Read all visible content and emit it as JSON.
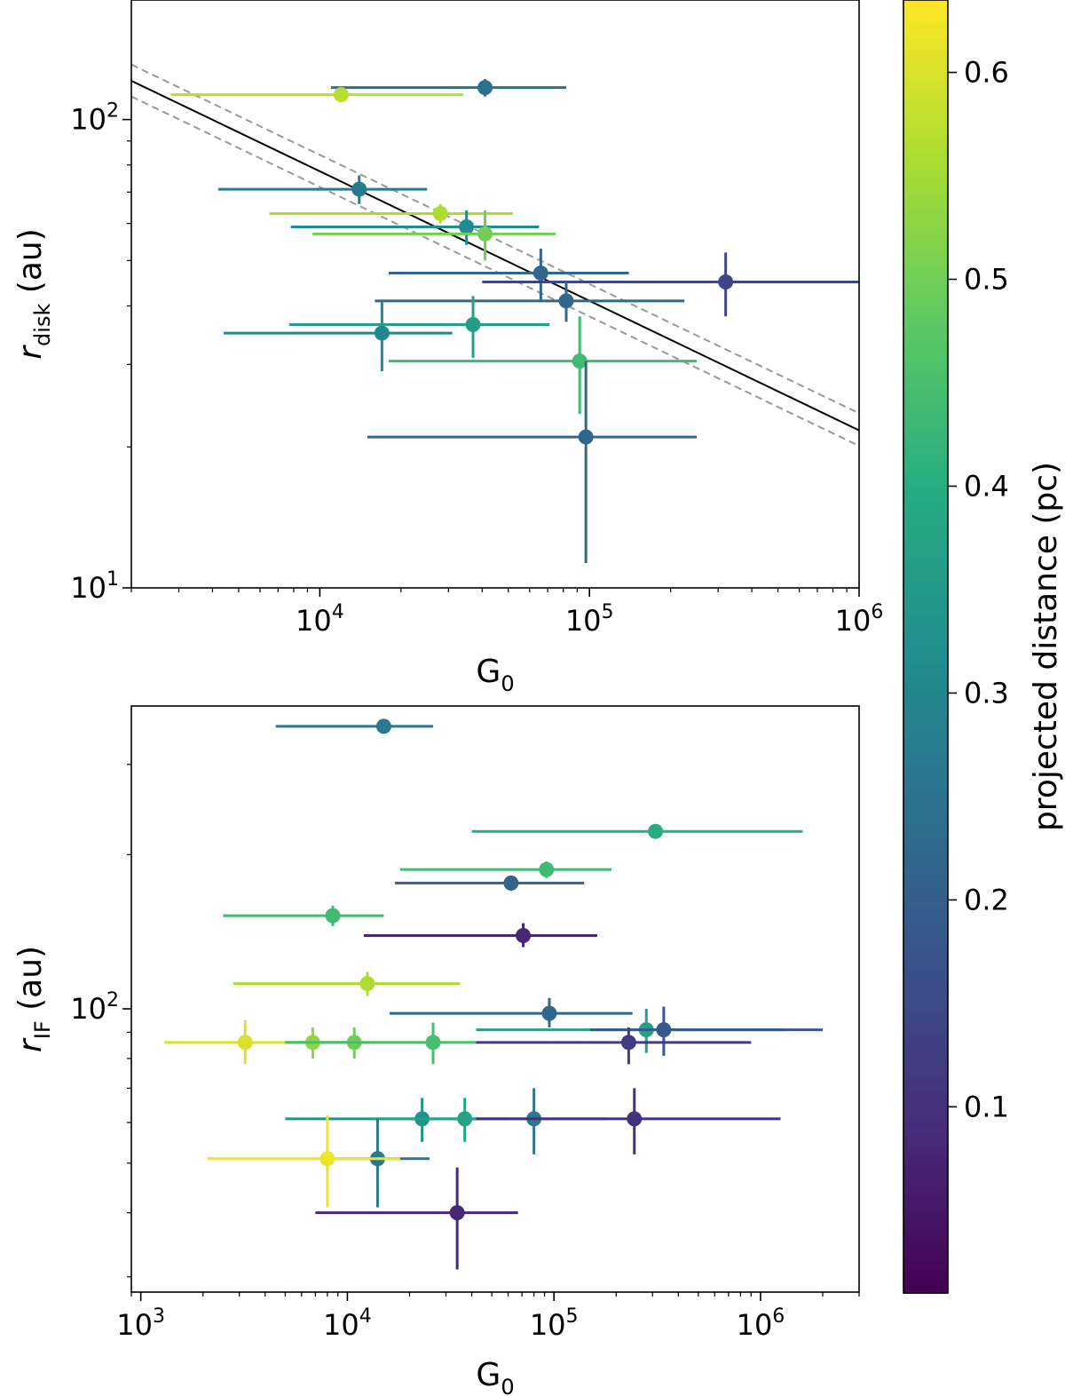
{
  "chart_data": [
    {
      "type": "scatter",
      "panel": "top",
      "title": "",
      "xlabel": "G",
      "xlabel_sub": "0",
      "ylabel": "r",
      "ylabel_sub": "disk",
      "ylabel_unit": "(au)",
      "xscale": "log",
      "yscale": "log",
      "xlim": [
        2000,
        1000000
      ],
      "ylim": [
        10,
        180
      ],
      "x_ticks": [
        {
          "base": "10",
          "exp": "4",
          "value": 10000
        },
        {
          "base": "10",
          "exp": "5",
          "value": 100000
        },
        {
          "base": "10",
          "exp": "6",
          "value": 1000000
        }
      ],
      "y_ticks": [
        {
          "base": "10",
          "exp": "1",
          "value": 10
        },
        {
          "base": "10",
          "exp": "2",
          "value": 100
        }
      ],
      "fit_line": {
        "style": "solid black",
        "x": [
          2000,
          1000000
        ],
        "y": [
          121,
          21.7
        ]
      },
      "fit_band": [
        {
          "style": "dashed gray",
          "x": [
            2000,
            1000000
          ],
          "y": [
            131,
            23.6
          ]
        },
        {
          "style": "dashed gray",
          "x": [
            2000,
            1000000
          ],
          "y": [
            112,
            20.1
          ]
        }
      ],
      "points": [
        {
          "x": 41000,
          "y": 117,
          "xlo": 11000,
          "xhi": 82000,
          "ylo": 112,
          "yhi": 122,
          "dist": 0.24
        },
        {
          "x": 12000,
          "y": 113,
          "xlo": 2800,
          "xhi": 34000,
          "ylo": 113,
          "yhi": 113,
          "dist": 0.57
        },
        {
          "x": 14000,
          "y": 71,
          "xlo": 4200,
          "xhi": 25000,
          "ylo": 66,
          "yhi": 76,
          "dist": 0.27
        },
        {
          "x": 28000,
          "y": 63,
          "xlo": 6500,
          "xhi": 52000,
          "ylo": 60,
          "yhi": 66,
          "dist": 0.56
        },
        {
          "x": 35000,
          "y": 59,
          "xlo": 7800,
          "xhi": 65000,
          "ylo": 54,
          "yhi": 64,
          "dist": 0.31
        },
        {
          "x": 41000,
          "y": 57,
          "xlo": 9400,
          "xhi": 75000,
          "ylo": 50,
          "yhi": 64,
          "dist": 0.5
        },
        {
          "x": 66000,
          "y": 47,
          "xlo": 18000,
          "xhi": 140000,
          "ylo": 41,
          "yhi": 53,
          "dist": 0.22
        },
        {
          "x": 320000,
          "y": 45,
          "xlo": 40000,
          "xhi": 1000000,
          "ylo": 38,
          "yhi": 52,
          "dist": 0.14
        },
        {
          "x": 82000,
          "y": 41,
          "xlo": 16000,
          "xhi": 225000,
          "ylo": 37,
          "yhi": 45,
          "dist": 0.22
        },
        {
          "x": 17000,
          "y": 35,
          "xlo": 4400,
          "xhi": 31000,
          "ylo": 29,
          "yhi": 41,
          "dist": 0.3
        },
        {
          "x": 37000,
          "y": 36.5,
          "xlo": 7700,
          "xhi": 71000,
          "ylo": 31,
          "yhi": 42,
          "dist": 0.36
        },
        {
          "x": 92000,
          "y": 30.5,
          "xlo": 18000,
          "xhi": 250000,
          "ylo": 23.5,
          "yhi": 38,
          "dist": 0.44
        },
        {
          "x": 97000,
          "y": 21,
          "xlo": 15000,
          "xhi": 250000,
          "ylo": 11.3,
          "yhi": 30.5,
          "dist": 0.22
        }
      ]
    },
    {
      "type": "scatter",
      "panel": "bottom",
      "title": "",
      "xlabel": "G",
      "xlabel_sub": "0",
      "ylabel": "r",
      "ylabel_sub": "IF",
      "ylabel_unit": "(au)",
      "xscale": "log",
      "yscale": "log",
      "xlim": [
        900,
        3000000
      ],
      "ylim": [
        28,
        390
      ],
      "x_ticks": [
        {
          "base": "10",
          "exp": "3",
          "value": 1000
        },
        {
          "base": "10",
          "exp": "4",
          "value": 10000
        },
        {
          "base": "10",
          "exp": "5",
          "value": 100000
        },
        {
          "base": "10",
          "exp": "6",
          "value": 1000000
        }
      ],
      "y_ticks": [
        {
          "base": "10",
          "exp": "2",
          "value": 100
        }
      ],
      "points": [
        {
          "x": 15000,
          "y": 356,
          "xlo": 4500,
          "xhi": 26000,
          "ylo": 351,
          "yhi": 361,
          "dist": 0.26
        },
        {
          "x": 310000,
          "y": 222,
          "xlo": 40000,
          "xhi": 1600000,
          "ylo": 215,
          "yhi": 229,
          "dist": 0.4
        },
        {
          "x": 92000,
          "y": 187,
          "xlo": 18000,
          "xhi": 190000,
          "ylo": 180,
          "yhi": 194,
          "dist": 0.44
        },
        {
          "x": 62000,
          "y": 176,
          "xlo": 17000,
          "xhi": 140000,
          "ylo": 170,
          "yhi": 182,
          "dist": 0.21
        },
        {
          "x": 8500,
          "y": 152,
          "xlo": 2500,
          "xhi": 15000,
          "ylo": 145,
          "yhi": 159,
          "dist": 0.44
        },
        {
          "x": 71000,
          "y": 139,
          "xlo": 12000,
          "xhi": 162000,
          "ylo": 132,
          "yhi": 147,
          "dist": 0.08
        },
        {
          "x": 12500,
          "y": 112,
          "xlo": 2800,
          "xhi": 35000,
          "ylo": 106,
          "yhi": 118,
          "dist": 0.56
        },
        {
          "x": 95000,
          "y": 98,
          "xlo": 16000,
          "xhi": 240000,
          "ylo": 92,
          "yhi": 105,
          "dist": 0.22
        },
        {
          "x": 280000,
          "y": 91,
          "xlo": 42000,
          "xhi": 1300000,
          "ylo": 82,
          "yhi": 100,
          "dist": 0.37
        },
        {
          "x": 340000,
          "y": 91,
          "xlo": 150000,
          "xhi": 2000000,
          "ylo": 81,
          "yhi": 101,
          "dist": 0.18
        },
        {
          "x": 3200,
          "y": 86,
          "xlo": 1300,
          "xhi": 8500,
          "ylo": 78,
          "yhi": 95,
          "dist": 0.6
        },
        {
          "x": 6800,
          "y": 86,
          "xlo": 5000,
          "xhi": 12000,
          "ylo": 80,
          "yhi": 92,
          "dist": 0.53
        },
        {
          "x": 10800,
          "y": 86,
          "xlo": 5000,
          "xhi": 25000,
          "ylo": 80,
          "yhi": 92,
          "dist": 0.5
        },
        {
          "x": 26000,
          "y": 86,
          "xlo": 5000,
          "xhi": 42000,
          "ylo": 78,
          "yhi": 94,
          "dist": 0.45
        },
        {
          "x": 230000,
          "y": 86,
          "xlo": 42000,
          "xhi": 900000,
          "ylo": 78,
          "yhi": 92,
          "dist": 0.12
        },
        {
          "x": 23000,
          "y": 61,
          "xlo": 5000,
          "xhi": 42000,
          "ylo": 55,
          "yhi": 67,
          "dist": 0.33
        },
        {
          "x": 37000,
          "y": 61,
          "xlo": 13000,
          "xhi": 60000,
          "ylo": 55,
          "yhi": 67,
          "dist": 0.37
        },
        {
          "x": 80000,
          "y": 61,
          "xlo": 42000,
          "xhi": 180000,
          "ylo": 52,
          "yhi": 70,
          "dist": 0.26
        },
        {
          "x": 245000,
          "y": 61,
          "xlo": 42000,
          "xhi": 1250000,
          "ylo": 52,
          "yhi": 70,
          "dist": 0.1
        },
        {
          "x": 14000,
          "y": 51,
          "xlo": 9000,
          "xhi": 25000,
          "ylo": 41,
          "yhi": 61,
          "dist": 0.26
        },
        {
          "x": 8000,
          "y": 51,
          "xlo": 2100,
          "xhi": 18000,
          "ylo": 41,
          "yhi": 62,
          "dist": 0.62
        },
        {
          "x": 34000,
          "y": 40,
          "xlo": 7000,
          "xhi": 67000,
          "ylo": 31,
          "yhi": 49,
          "dist": 0.08
        }
      ]
    }
  ],
  "colorbar": {
    "label": "projected distance (pc)",
    "colormap": "viridis",
    "range": [
      0.01,
      0.635
    ],
    "ticks": [
      "0.1",
      "0.2",
      "0.3",
      "0.4",
      "0.5",
      "0.6"
    ],
    "tick_values": [
      0.1,
      0.2,
      0.3,
      0.4,
      0.5,
      0.6
    ]
  }
}
